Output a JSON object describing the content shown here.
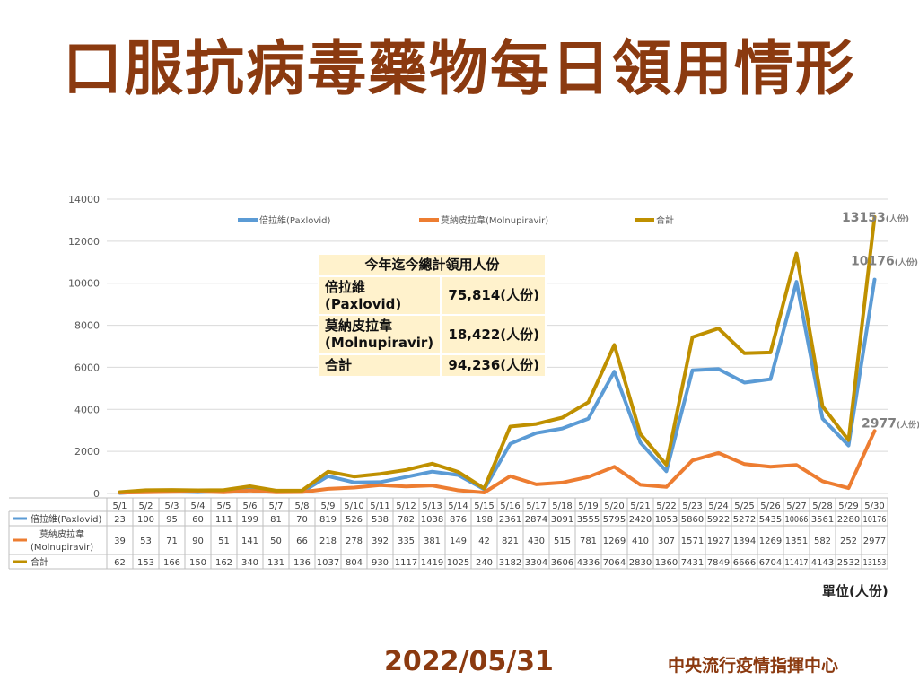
{
  "title": "口服抗病毒藥物每日領用情形",
  "unit_label": "單位(人份)",
  "footer": {
    "date": "2022/05/31",
    "org": "中央流行疫情指揮中心"
  },
  "summary": {
    "header": "今年迄今總計領用人份",
    "rows": [
      {
        "name_line1": "倍拉維",
        "name_line2": "(Paxlovid)",
        "value": "75,814(人份)"
      },
      {
        "name_line1": "莫納皮拉韋",
        "name_line2": "(Molnupiravir)",
        "value": "18,422(人份)"
      },
      {
        "name_line1": "合計",
        "name_line2": "",
        "value": "94,236(人份)"
      }
    ]
  },
  "chart_data": {
    "type": "line",
    "categories": [
      "5/1",
      "5/2",
      "5/3",
      "5/4",
      "5/5",
      "5/6",
      "5/7",
      "5/8",
      "5/9",
      "5/10",
      "5/11",
      "5/12",
      "5/13",
      "5/14",
      "5/15",
      "5/16",
      "5/17",
      "5/18",
      "5/19",
      "5/20",
      "5/21",
      "5/22",
      "5/23",
      "5/24",
      "5/25",
      "5/26",
      "5/27",
      "5/28",
      "5/29",
      "5/30"
    ],
    "ylim": [
      0,
      14000
    ],
    "yticks": [
      "0",
      "2000",
      "4000",
      "6000",
      "8000",
      "10000",
      "12000",
      "14000"
    ],
    "grid": true,
    "legend_position": "top",
    "series": [
      {
        "name": "倍拉維(Paxlovid)",
        "table_label": "倍拉維(Paxlovid)",
        "color": "#5B9BD5",
        "values": [
          23,
          100,
          95,
          60,
          111,
          199,
          81,
          70,
          819,
          526,
          538,
          782,
          1038,
          876,
          198,
          2361,
          2874,
          3091,
          3555,
          5795,
          2420,
          1053,
          5860,
          5922,
          5272,
          5435,
          10066,
          3561,
          2280,
          10176
        ],
        "end_label": "10176",
        "end_unit": "(人份)"
      },
      {
        "name": "莫納皮拉韋(Molnupiravir)",
        "table_label_line1": "莫納皮拉韋",
        "table_label_line2": "(Molnupiravir)",
        "color": "#ED7D31",
        "values": [
          39,
          53,
          71,
          90,
          51,
          141,
          50,
          66,
          218,
          278,
          392,
          335,
          381,
          149,
          42,
          821,
          430,
          515,
          781,
          1269,
          410,
          307,
          1571,
          1927,
          1394,
          1269,
          1351,
          582,
          252,
          2977
        ],
        "end_label": "2977",
        "end_unit": "(人份)"
      },
      {
        "name": "合計",
        "table_label": "合計",
        "color": "#BF9000",
        "values": [
          62,
          153,
          166,
          150,
          162,
          340,
          131,
          136,
          1037,
          804,
          930,
          1117,
          1419,
          1025,
          240,
          3182,
          3304,
          3606,
          4336,
          7064,
          2830,
          1360,
          7431,
          7849,
          6666,
          6704,
          11417,
          4143,
          2532,
          13153
        ],
        "end_label": "13153",
        "end_unit": "(人份)"
      }
    ]
  }
}
